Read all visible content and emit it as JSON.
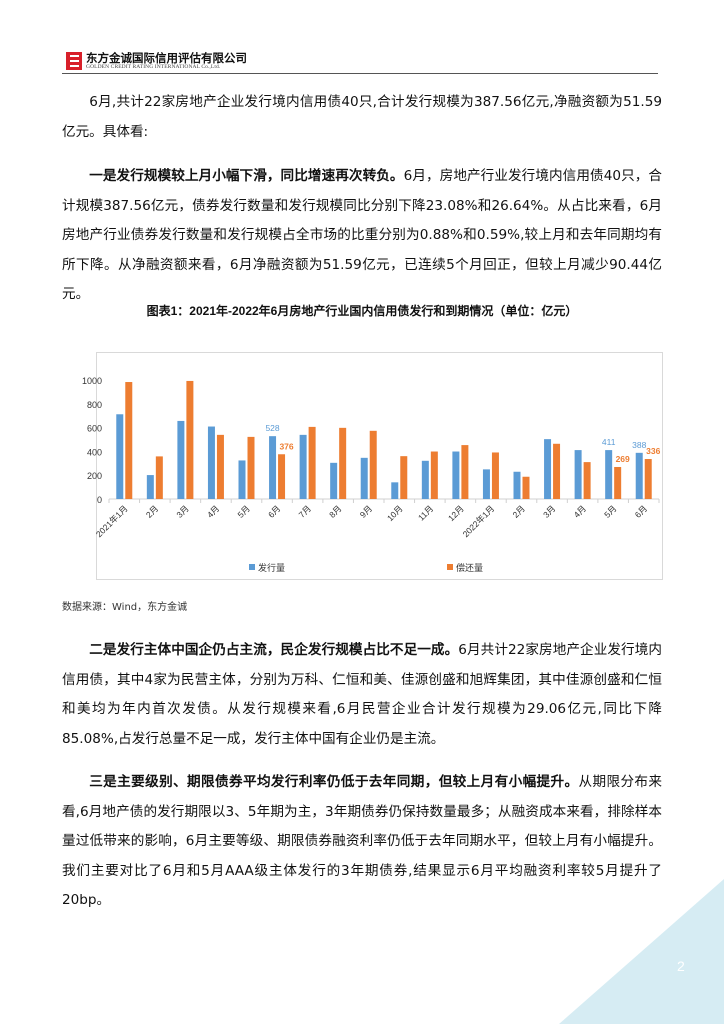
{
  "header": {
    "company_cn": "东方金诚国际信用评估有限公司",
    "company_en": "GOLDEN CREDIT RATING INTERNATIONAL Co.,Ltd."
  },
  "paragraphs": [
    {
      "lead": "",
      "text": "6月,共计22家房地产企业发行境内信用债40只,合计发行规模为387.56亿元,净融资额为51.59亿元。具体看:"
    },
    {
      "lead": "一是发行规模较上月小幅下滑，同比增速再次转负。",
      "text": "6月，房地产行业发行境内信用债40只，合计规模387.56亿元，债券发行数量和发行规模同比分别下降23.08%和26.64%。从占比来看，6月房地产行业债券发行数量和发行规模占全市场的比重分别为0.88%和0.59%,较上月和去年同期均有所下降。从净融资额来看，6月净融资额为51.59亿元，已连续5个月回正，但较上月减少90.44亿元。"
    },
    {
      "lead": "二是发行主体中国企仍占主流，民企发行规模占比不足一成。",
      "text": "6月共计22家房地产企业发行境内信用债，其中4家为民营主体，分别为万科、仁恒和美、佳源创盛和旭辉集团，其中佳源创盛和仁恒和美均为年内首次发债。从发行规模来看,6月民营企业合计发行规模为29.06亿元,同比下降85.08%,占发行总量不足一成，发行主体中国有企业仍是主流。"
    },
    {
      "lead": "三是主要级别、期限债券平均发行利率仍低于去年同期，但较上月有小幅提升。",
      "text": "从期限分布来看,6月地产债的发行期限以3、5年期为主，3年期债券仍保持数量最多；从融资成本来看，排除样本量过低带来的影响，6月主要等级、期限债券融资利率仍低于去年同期水平，但较上月有小幅提升。我们主要对比了6月和5月AAA级主体发行的3年期债券,结果显示6月平均融资利率较5月提升了20bp。"
    }
  ],
  "figure_caption": "图表1：2021年-2022年6月房地产行业国内信用债发行和到期情况（单位：亿元）",
  "source": "数据来源：Wind，东方金诚",
  "page_number": "2",
  "chart_data": {
    "type": "bar",
    "categories": [
      "2021年1月",
      "2月",
      "3月",
      "4月",
      "5月",
      "6月",
      "7月",
      "8月",
      "9月",
      "10月",
      "11月",
      "12月",
      "2022年1月",
      "2月",
      "3月",
      "4月",
      "5月",
      "6月"
    ],
    "series": [
      {
        "name": "发行量",
        "color": "#5b9bd5",
        "values": [
          712,
          201,
          656,
          609,
          324,
          528,
          539,
          304,
          346,
          140,
          321,
          399,
          249,
          229,
          503,
          411,
          411,
          388
        ]
      },
      {
        "name": "偿还量",
        "color": "#ed7d31",
        "values": [
          983,
          358,
          992,
          539,
          522,
          376,
          606,
          598,
          573,
          360,
          399,
          453,
          391,
          187,
          464,
          310,
          269,
          336
        ]
      }
    ],
    "data_labels": [
      {
        "category": "6月",
        "series": "发行量",
        "text": "528"
      },
      {
        "category": "6月",
        "series": "偿还量",
        "text": "376"
      },
      {
        "category_index": 16,
        "series": "发行量",
        "text": "411"
      },
      {
        "category_index": 16,
        "series": "偿还量",
        "text": "269"
      },
      {
        "category_index": 17,
        "series": "发行量",
        "text": "388"
      },
      {
        "category_index": 17,
        "series": "偿还量",
        "text": "336"
      }
    ],
    "yticks": [
      "0",
      "200",
      "400",
      "600",
      "800",
      "1000"
    ],
    "ylim": [
      0,
      1000
    ],
    "grid": false,
    "legend": "bottom"
  }
}
